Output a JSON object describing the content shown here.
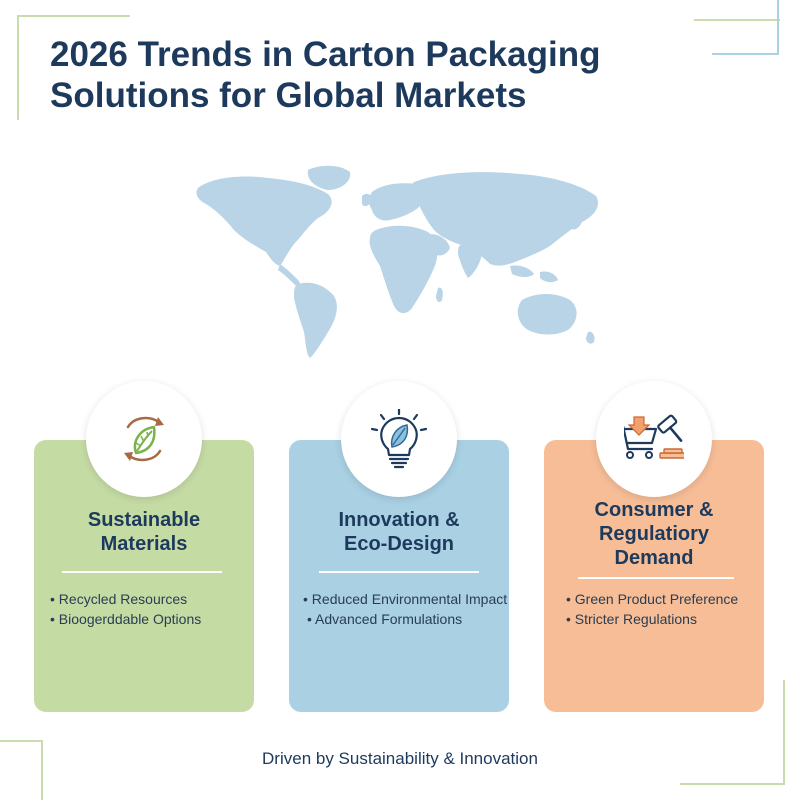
{
  "header": {
    "title_line1": "2026 Trends in Carton Packaging",
    "title_line2": "Solutions for Global Markets"
  },
  "map": {
    "icon": "world-map",
    "color": "#b9d4e6"
  },
  "cards": [
    {
      "icon": "recycle-leaf-icon",
      "heading_line1": "Sustainable",
      "heading_line2": "Materials",
      "bullets": [
        "Recycled Resources",
        "Bioogerddable Options"
      ],
      "color": "#c5dba4"
    },
    {
      "icon": "lightbulb-leaf-icon",
      "heading_line1": "Innovation &",
      "heading_line2": "Eco-Design",
      "bullets": [
        "Reduced Environmental Impact",
        "Advanced Formulations"
      ],
      "color": "#a9d0e3"
    },
    {
      "icon": "cart-gavel-icon",
      "heading_line1": "Consumer &",
      "heading_line2": "Regulatiory",
      "heading_line3": "Demand",
      "bullets": [
        "Green Product Preference",
        "Stricter Regulations"
      ],
      "color": "#f6bd97"
    }
  ],
  "footer": {
    "text": "Driven by Sustainability & Innovation"
  },
  "colors": {
    "title": "#1d3a5c",
    "deco_green": "#c9dcae",
    "deco_blue": "#a9d0e3"
  }
}
